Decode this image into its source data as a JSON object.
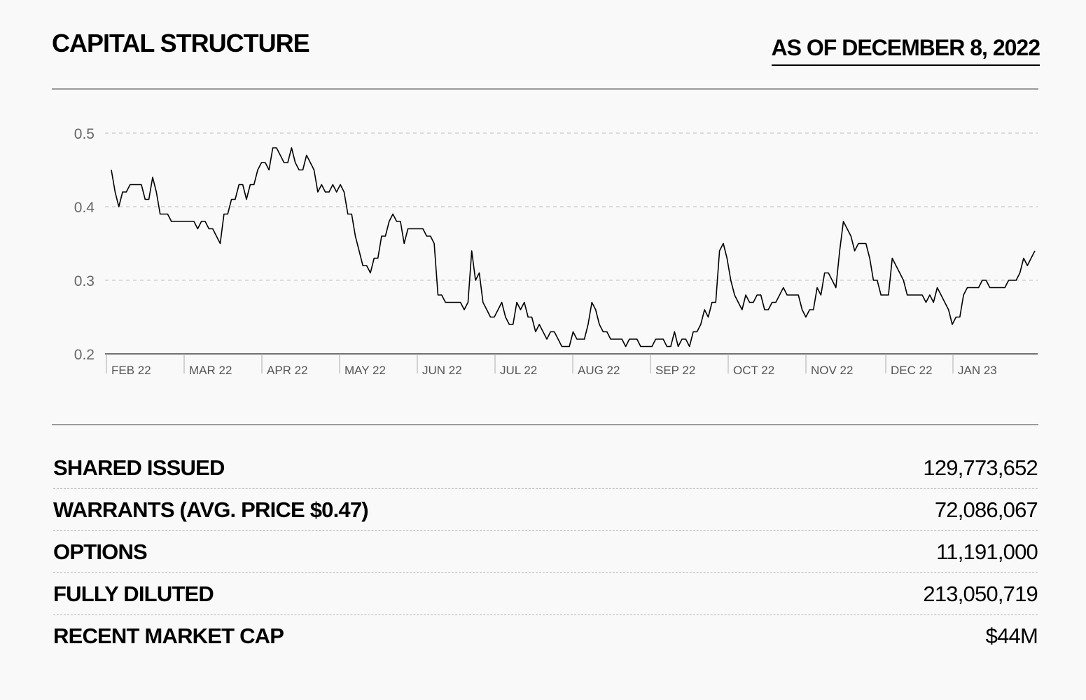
{
  "header": {
    "title": "CAPITAL STRUCTURE",
    "as_of": "AS OF DECEMBER 8, 2022"
  },
  "chart_data": {
    "type": "line",
    "title": "",
    "xlabel": "",
    "ylabel": "",
    "ylim": [
      0.2,
      0.5
    ],
    "yticks": [
      "0.2",
      "0.3",
      "0.4",
      "0.5"
    ],
    "grid": "horizontal-dashed",
    "xticks": [
      "FEB 22",
      "MAR 22",
      "APR 22",
      "MAY 22",
      "JUN 22",
      "JUL 22",
      "AUG 22",
      "SEP 22",
      "OCT 22",
      "NOV 22",
      "DEC 22",
      "JAN 23"
    ],
    "series": [
      {
        "values": [
          0.45,
          0.42,
          0.4,
          0.42,
          0.42,
          0.43,
          0.43,
          0.43,
          0.43,
          0.41,
          0.41,
          0.44,
          0.42,
          0.39,
          0.39,
          0.39,
          0.38,
          0.38,
          0.38,
          0.38,
          0.38,
          0.38,
          0.38,
          0.37,
          0.38,
          0.38,
          0.37,
          0.37,
          0.36,
          0.35,
          0.39,
          0.39,
          0.41,
          0.41,
          0.43,
          0.43,
          0.41,
          0.43,
          0.43,
          0.45,
          0.46,
          0.46,
          0.45,
          0.48,
          0.48,
          0.47,
          0.46,
          0.46,
          0.48,
          0.46,
          0.45,
          0.45,
          0.47,
          0.46,
          0.45,
          0.42,
          0.43,
          0.42,
          0.42,
          0.43,
          0.42,
          0.43,
          0.42,
          0.39,
          0.39,
          0.36,
          0.34,
          0.32,
          0.32,
          0.31,
          0.33,
          0.33,
          0.36,
          0.36,
          0.38,
          0.39,
          0.38,
          0.38,
          0.35,
          0.37,
          0.37,
          0.37,
          0.37,
          0.37,
          0.36,
          0.36,
          0.35,
          0.28,
          0.28,
          0.27,
          0.27,
          0.27,
          0.27,
          0.27,
          0.26,
          0.27,
          0.34,
          0.3,
          0.31,
          0.27,
          0.26,
          0.25,
          0.25,
          0.26,
          0.27,
          0.25,
          0.24,
          0.24,
          0.27,
          0.26,
          0.27,
          0.25,
          0.25,
          0.23,
          0.24,
          0.23,
          0.22,
          0.23,
          0.23,
          0.22,
          0.21,
          0.21,
          0.21,
          0.23,
          0.22,
          0.22,
          0.22,
          0.24,
          0.27,
          0.26,
          0.24,
          0.23,
          0.23,
          0.22,
          0.22,
          0.22,
          0.22,
          0.21,
          0.22,
          0.22,
          0.22,
          0.21,
          0.21,
          0.21,
          0.21,
          0.22,
          0.22,
          0.22,
          0.21,
          0.21,
          0.23,
          0.21,
          0.22,
          0.22,
          0.21,
          0.23,
          0.23,
          0.24,
          0.26,
          0.25,
          0.27,
          0.27,
          0.34,
          0.35,
          0.33,
          0.3,
          0.28,
          0.27,
          0.26,
          0.28,
          0.27,
          0.27,
          0.28,
          0.28,
          0.26,
          0.26,
          0.27,
          0.27,
          0.28,
          0.29,
          0.28,
          0.28,
          0.28,
          0.28,
          0.26,
          0.25,
          0.26,
          0.26,
          0.29,
          0.28,
          0.31,
          0.31,
          0.3,
          0.29,
          0.34,
          0.38,
          0.37,
          0.36,
          0.34,
          0.35,
          0.35,
          0.35,
          0.33,
          0.3,
          0.3,
          0.28,
          0.28,
          0.28,
          0.33,
          0.32,
          0.31,
          0.3,
          0.28,
          0.28,
          0.28,
          0.28,
          0.28,
          0.27,
          0.28,
          0.27,
          0.29,
          0.28,
          0.27,
          0.26,
          0.24,
          0.25,
          0.25,
          0.28,
          0.29,
          0.29,
          0.29,
          0.29,
          0.3,
          0.3,
          0.29,
          0.29,
          0.29,
          0.29,
          0.29,
          0.3,
          0.3,
          0.3,
          0.31,
          0.33,
          0.32,
          0.33,
          0.34
        ]
      }
    ]
  },
  "metrics": [
    {
      "label": "SHARED ISSUED",
      "value": "129,773,652"
    },
    {
      "label": "WARRANTS (AVG. PRICE $0.47)",
      "value": "72,086,067"
    },
    {
      "label": "OPTIONS",
      "value": "11,191,000"
    },
    {
      "label": "FULLY DILUTED",
      "value": "213,050,719"
    },
    {
      "label": "RECENT MARKET CAP",
      "value": "$44M"
    }
  ]
}
